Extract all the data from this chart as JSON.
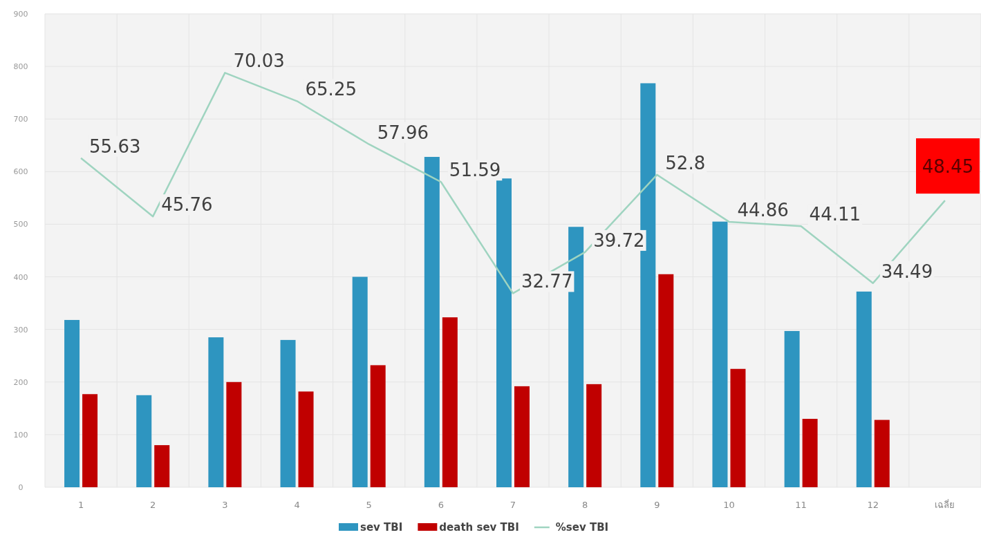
{
  "chart_data": {
    "type": "bar",
    "categories": [
      "1",
      "2",
      "3",
      "4",
      "5",
      "6",
      "7",
      "8",
      "9",
      "10",
      "11",
      "12",
      "เฉลี่ย"
    ],
    "series": [
      {
        "name": "sev TBI",
        "color": "#2e95c0",
        "values": [
          318,
          175,
          285,
          280,
          400,
          628,
          587,
          495,
          768,
          505,
          297,
          372,
          null
        ]
      },
      {
        "name": "death sev TBI",
        "color": "#c00000",
        "values": [
          177,
          80,
          200,
          182,
          232,
          323,
          192,
          196,
          405,
          225,
          130,
          128,
          null
        ]
      },
      {
        "name": "%sev TBI",
        "type": "line",
        "axis": "y2",
        "color": "#9fd4c0",
        "values": [
          55.63,
          45.76,
          70.03,
          65.25,
          57.96,
          51.59,
          32.77,
          39.72,
          52.8,
          44.86,
          44.11,
          34.49,
          48.45
        ],
        "value_labels": [
          "55.63",
          "45.76",
          "70.03",
          "65.25",
          "57.96",
          "51.59",
          "32.77",
          "39.72",
          "52.8",
          "44.86",
          "44.11",
          "34.49",
          "48.45"
        ]
      }
    ],
    "ylim": [
      0,
      900
    ],
    "yticks": [
      0,
      100,
      200,
      300,
      400,
      500,
      600,
      700,
      800,
      900
    ],
    "y2lim": [
      0,
      80
    ],
    "tick_labels": "xy",
    "grid": true,
    "legend": "bottom",
    "marker": "none"
  }
}
